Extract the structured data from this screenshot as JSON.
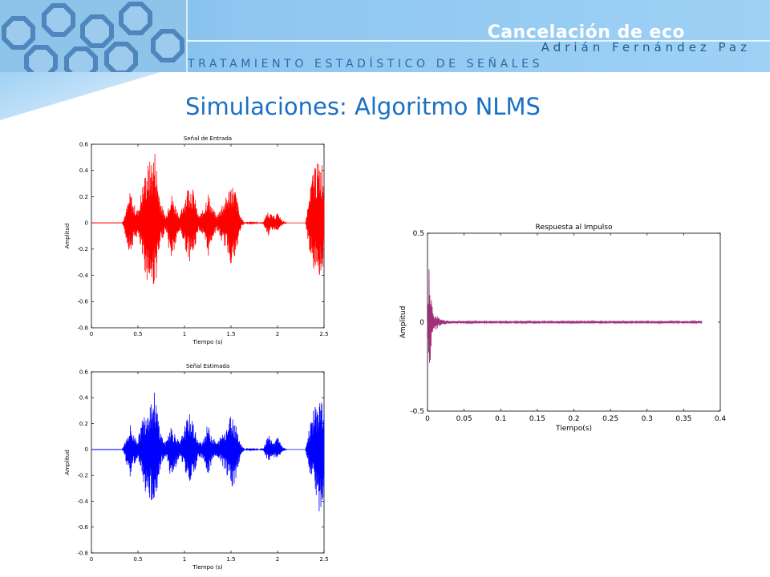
{
  "header": {
    "title": "Cancelación de eco",
    "author": "Adrián Fernández Paz",
    "course": "TRATAMIENTO ESTADÍSTICO DE SEÑALES"
  },
  "slide": {
    "title": "Simulaciones: Algoritmo NLMS"
  },
  "chart_data": [
    {
      "type": "line",
      "title": "Señal de Entrada",
      "xlabel": "Tiempo (s)",
      "ylabel": "Amplitud",
      "xlim": [
        0,
        2.5
      ],
      "ylim": [
        -0.8,
        0.6
      ],
      "xticks": [
        "0",
        "0.5",
        "1",
        "1.5",
        "2",
        "2.5"
      ],
      "yticks": [
        "0.6",
        "0.4",
        "0.2",
        "0",
        "-0.2",
        "-0.4",
        "-0.6",
        "-0.8"
      ],
      "color": "#ff0000",
      "series": [
        {
          "x": [
            0,
            0.33,
            0.35,
            0.38,
            0.42,
            0.45,
            0.5,
            0.55,
            0.6,
            0.65,
            0.68,
            0.7,
            0.72,
            0.75,
            0.8,
            0.85,
            0.9,
            0.95,
            1.0,
            1.05,
            1.1,
            1.15,
            1.2,
            1.25,
            1.3,
            1.35,
            1.4,
            1.45,
            1.5,
            1.55,
            1.6,
            1.65,
            1.7,
            1.75,
            1.8,
            1.85,
            1.9,
            1.95,
            2.0,
            2.05,
            2.1,
            2.15,
            2.2,
            2.25,
            2.3,
            2.35,
            2.4,
            2.42,
            2.45,
            2.48,
            2.5
          ],
          "upper": [
            0,
            0.0,
            0.05,
            0.12,
            0.25,
            0.15,
            0.1,
            0.3,
            0.45,
            0.5,
            0.58,
            0.45,
            0.3,
            0.15,
            0.05,
            0.25,
            0.15,
            0.05,
            0.2,
            0.32,
            0.25,
            0.05,
            0.1,
            0.25,
            0.12,
            0.05,
            0.15,
            0.2,
            0.32,
            0.25,
            0.05,
            0.0,
            0.01,
            0.01,
            0.0,
            0.01,
            0.1,
            0.05,
            0.08,
            0.02,
            0.0,
            0.0,
            0.0,
            0.0,
            0.0,
            0.25,
            0.5,
            0.45,
            0.48,
            0.48,
            0.3
          ],
          "lower": [
            0,
            0.0,
            -0.05,
            -0.15,
            -0.25,
            -0.15,
            -0.1,
            -0.3,
            -0.45,
            -0.5,
            -0.48,
            -0.42,
            -0.3,
            -0.15,
            -0.05,
            -0.3,
            -0.2,
            -0.05,
            -0.18,
            -0.3,
            -0.25,
            -0.05,
            -0.1,
            -0.28,
            -0.12,
            -0.05,
            -0.15,
            -0.2,
            -0.32,
            -0.3,
            -0.05,
            0.0,
            -0.01,
            -0.01,
            0.0,
            -0.01,
            -0.1,
            -0.05,
            -0.06,
            -0.02,
            0.0,
            0.0,
            0.0,
            0.0,
            0.0,
            -0.25,
            -0.4,
            -0.38,
            -0.4,
            -0.42,
            -0.2
          ]
        }
      ]
    },
    {
      "type": "line",
      "title": "Señal Estimada",
      "xlabel": "Tiempo (s)",
      "ylabel": "Amplitud",
      "xlim": [
        0,
        2.5
      ],
      "ylim": [
        -0.8,
        0.6
      ],
      "xticks": [
        "0",
        "0.5",
        "1",
        "1.5",
        "2",
        "2.5"
      ],
      "yticks": [
        "0.6",
        "0.4",
        "0.2",
        "0",
        "-0.2",
        "-0.4",
        "-0.6",
        "-0.8"
      ],
      "color": "#0000ff",
      "series": [
        {
          "x": [
            0,
            0.33,
            0.35,
            0.38,
            0.42,
            0.45,
            0.5,
            0.55,
            0.6,
            0.65,
            0.68,
            0.7,
            0.72,
            0.75,
            0.8,
            0.85,
            0.9,
            0.95,
            1.0,
            1.05,
            1.1,
            1.15,
            1.2,
            1.25,
            1.3,
            1.35,
            1.4,
            1.45,
            1.5,
            1.55,
            1.6,
            1.65,
            1.7,
            1.75,
            1.8,
            1.85,
            1.9,
            1.95,
            2.0,
            2.05,
            2.1,
            2.15,
            2.2,
            2.25,
            2.3,
            2.35,
            2.4,
            2.42,
            2.45,
            2.48,
            2.5
          ],
          "upper": [
            0,
            0.0,
            0.04,
            0.1,
            0.2,
            0.12,
            0.08,
            0.25,
            0.35,
            0.42,
            0.45,
            0.35,
            0.25,
            0.12,
            0.05,
            0.2,
            0.12,
            0.05,
            0.18,
            0.28,
            0.2,
            0.05,
            0.08,
            0.2,
            0.1,
            0.05,
            0.12,
            0.18,
            0.28,
            0.22,
            0.05,
            0.0,
            0.01,
            0.01,
            0.0,
            0.01,
            0.12,
            0.05,
            0.1,
            0.02,
            0.0,
            0.0,
            0.0,
            0.0,
            0.0,
            0.2,
            0.35,
            0.3,
            0.42,
            0.4,
            0.28
          ],
          "lower": [
            0,
            0.0,
            -0.04,
            -0.12,
            -0.22,
            -0.12,
            -0.08,
            -0.25,
            -0.38,
            -0.4,
            -0.38,
            -0.35,
            -0.25,
            -0.12,
            -0.05,
            -0.22,
            -0.15,
            -0.05,
            -0.15,
            -0.28,
            -0.22,
            -0.05,
            -0.08,
            -0.22,
            -0.1,
            -0.05,
            -0.12,
            -0.18,
            -0.3,
            -0.25,
            -0.05,
            0.0,
            -0.01,
            -0.01,
            0.0,
            -0.01,
            -0.1,
            -0.05,
            -0.08,
            -0.02,
            0.0,
            0.0,
            0.0,
            0.0,
            0.0,
            -0.2,
            -0.3,
            -0.38,
            -0.5,
            -0.45,
            -0.3
          ]
        }
      ]
    },
    {
      "type": "line",
      "title": "Respuesta al Impulso",
      "xlabel": "Tiempo(s)",
      "ylabel": "Amplitud",
      "xlim": [
        0,
        0.4
      ],
      "ylim": [
        -0.5,
        0.5
      ],
      "xticks": [
        "0",
        "0.05",
        "0.1",
        "0.15",
        "0.2",
        "0.25",
        "0.3",
        "0.35",
        "0.4"
      ],
      "yticks": [
        "0.5",
        "0",
        "-0.5"
      ],
      "color": "#a0307a",
      "series": [
        {
          "x": [
            0,
            0.002,
            0.004,
            0.006,
            0.008,
            0.01,
            0.015,
            0.02,
            0.03,
            0.05,
            0.1,
            0.2,
            0.3,
            0.375
          ],
          "upper": [
            0.0,
            0.4,
            0.18,
            0.1,
            0.08,
            0.05,
            0.03,
            0.015,
            0.008,
            0.006,
            0.005,
            0.005,
            0.005,
            0.005
          ],
          "lower": [
            0.0,
            -0.4,
            -0.2,
            -0.12,
            -0.08,
            -0.05,
            -0.03,
            -0.015,
            -0.008,
            -0.006,
            -0.005,
            -0.005,
            -0.005,
            -0.005
          ]
        }
      ]
    }
  ]
}
